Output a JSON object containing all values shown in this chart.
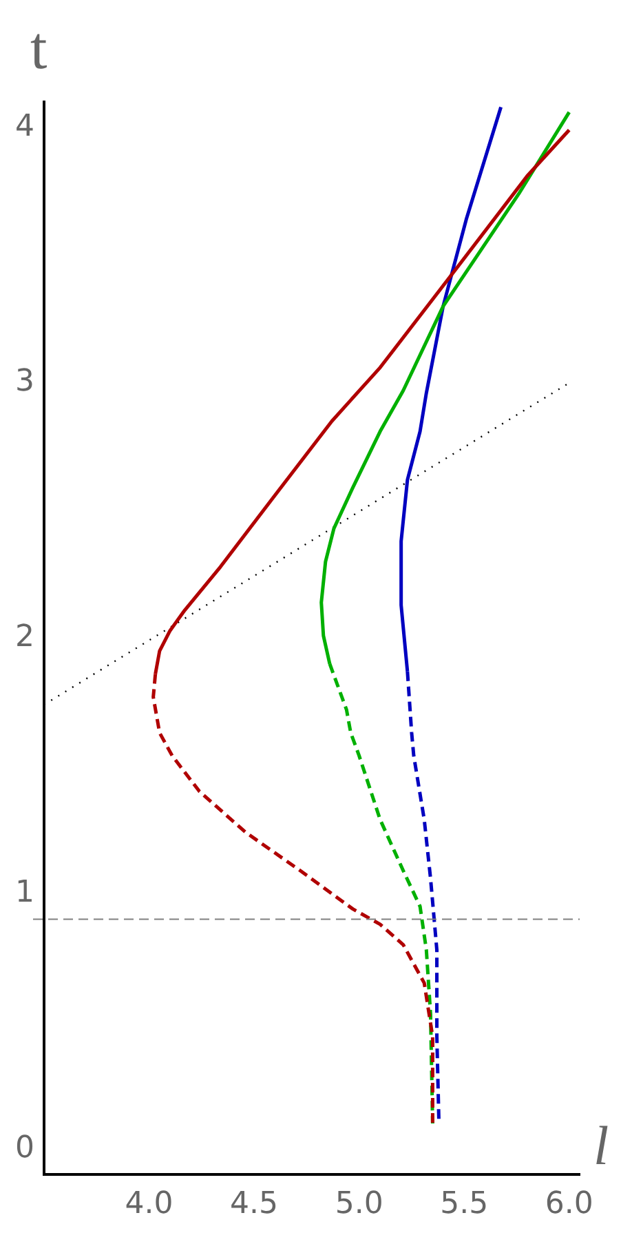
{
  "chart_data": {
    "type": "line",
    "xlabel": "l",
    "ylabel": "t",
    "xlim": [
      3.5,
      6.05
    ],
    "ylim": [
      -0.1,
      4.1
    ],
    "xticks": [
      {
        "value": 4,
        "label": "4.0"
      },
      {
        "value": 4.5,
        "label": "4.5"
      },
      {
        "value": 5,
        "label": "5.0"
      },
      {
        "value": 5.5,
        "label": "5.5"
      },
      {
        "value": 6,
        "label": "6.0"
      }
    ],
    "yticks": [
      0,
      1,
      2,
      3,
      4
    ],
    "grid": false,
    "legend": false,
    "marker": "none",
    "series": [
      {
        "color": "#b00000",
        "line_style": "solid",
        "x": [
          6.0,
          5.8,
          5.465,
          5.1,
          4.87,
          4.59,
          4.34,
          4.17,
          4.1,
          4.05,
          4.03
        ],
        "values": [
          3.99,
          3.81,
          3.45,
          3.06,
          2.85,
          2.55,
          2.28,
          2.11,
          2.03,
          1.95,
          1.86
        ]
      },
      {
        "color": "#b00000",
        "line_style": "dashed",
        "x": [
          4.03,
          4.02,
          4.05,
          4.11,
          4.24,
          4.46,
          4.72,
          4.97,
          5.1,
          5.21,
          5.31,
          5.35,
          5.35
        ],
        "values": [
          1.86,
          1.77,
          1.63,
          1.54,
          1.4,
          1.24,
          1.09,
          0.94,
          0.88,
          0.8,
          0.65,
          0.44,
          0.1
        ]
      },
      {
        "color": "#00b000",
        "line_style": "solid",
        "x": [
          6.0,
          5.76,
          5.4,
          5.21,
          5.1,
          4.97,
          4.88,
          4.84,
          4.82,
          4.83,
          4.86
        ],
        "values": [
          4.06,
          3.74,
          3.3,
          2.97,
          2.81,
          2.59,
          2.43,
          2.3,
          2.14,
          2.01,
          1.9
        ]
      },
      {
        "color": "#00b000",
        "line_style": "dashed",
        "x": [
          4.86,
          4.94,
          4.96,
          5.0,
          5.1,
          5.21,
          5.29,
          5.32,
          5.34,
          5.35
        ],
        "values": [
          1.9,
          1.72,
          1.63,
          1.54,
          1.29,
          1.09,
          0.95,
          0.78,
          0.53,
          0.1
        ]
      },
      {
        "color": "#0000c0",
        "line_style": "solid",
        "x": [
          5.675,
          5.51,
          5.4,
          5.32,
          5.29,
          5.23,
          5.2,
          5.2,
          5.23
        ],
        "values": [
          4.08,
          3.64,
          3.3,
          2.96,
          2.81,
          2.62,
          2.38,
          2.13,
          1.87
        ]
      },
      {
        "color": "#0000c0",
        "line_style": "dashed",
        "x": [
          5.23,
          5.25,
          5.26,
          5.31,
          5.34,
          5.37,
          5.37,
          5.38
        ],
        "values": [
          1.87,
          1.63,
          1.54,
          1.29,
          1.06,
          0.78,
          0.44,
          0.1
        ]
      },
      {
        "type": "line",
        "color": "#000000",
        "line_style": "dotted",
        "x": [
          3.5,
          6.0
        ],
        "values": [
          1.74,
          3.0
        ]
      }
    ],
    "ref_lines": [
      {
        "axis": "y",
        "value": 0.9,
        "color": "#808080",
        "line_style": "dashed"
      }
    ]
  }
}
